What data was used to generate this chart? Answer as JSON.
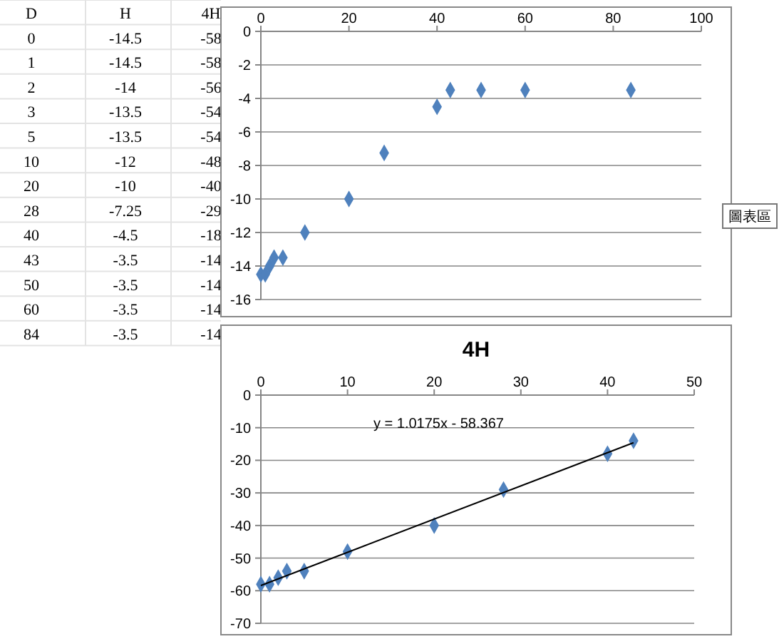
{
  "chart_data": [
    {
      "type": "other",
      "annotations": [
        "D",
        "H",
        "4H",
        "0",
        "-14.5",
        "-58",
        "1",
        "-14.5",
        "-58",
        "2",
        "-14",
        "-56",
        "3",
        "-13.5",
        "-54",
        "5",
        "-13.5",
        "-54",
        "10",
        "-12",
        "-48",
        "20",
        "-10",
        "-40",
        "28",
        "-7.25",
        "-29",
        "40",
        "-4.5",
        "-18",
        "43",
        "-3.5",
        "-14",
        "50",
        "-3.5",
        "-14",
        "60",
        "-3.5",
        "-14",
        "84",
        "-3.5",
        "-14"
      ]
    },
    {
      "type": "scatter",
      "x": [
        0,
        1,
        2,
        3,
        5,
        10,
        20,
        28,
        40,
        43,
        50,
        60,
        84
      ],
      "values": [
        -14.5,
        -14.5,
        -14,
        -13.5,
        -13.5,
        -12,
        -10,
        -7.25,
        -4.5,
        -3.5,
        -3.5,
        -3.5,
        -3.5
      ],
      "color": "#4f81bd",
      "marker": "diamond",
      "xlim": [
        0,
        100
      ],
      "xticks": [
        0,
        20,
        40,
        60,
        80,
        100
      ],
      "ylim": [
        -16,
        0
      ],
      "yticks": [
        0,
        -2,
        -4,
        -6,
        -8,
        -10,
        -12,
        -14,
        -16
      ],
      "grid": "y",
      "annotations": [
        "圖表區"
      ]
    },
    {
      "type": "scatter",
      "title": "4H",
      "series": [
        {
          "type": "scatter",
          "marker": "diamond",
          "color": "#4f81bd",
          "x": [
            0,
            1,
            2,
            3,
            5,
            10,
            20,
            28,
            40,
            43
          ],
          "values": [
            -58,
            -58,
            -56,
            -54,
            -54,
            -48,
            -40,
            -29,
            -18,
            -14
          ]
        },
        {
          "type": "line",
          "marker": "none",
          "color": "#000000",
          "x": [
            0,
            43
          ],
          "values": [
            -58.4,
            -14.6
          ]
        }
      ],
      "xlim": [
        0,
        50
      ],
      "xticks": [
        0,
        10,
        20,
        30,
        40,
        50
      ],
      "ylim": [
        -70,
        0
      ],
      "yticks": [
        0,
        -10,
        -20,
        -30,
        -40,
        -50,
        -60,
        -70
      ],
      "grid": "y",
      "annotations": [
        "y = 1.0175x  - 58.367"
      ]
    }
  ]
}
